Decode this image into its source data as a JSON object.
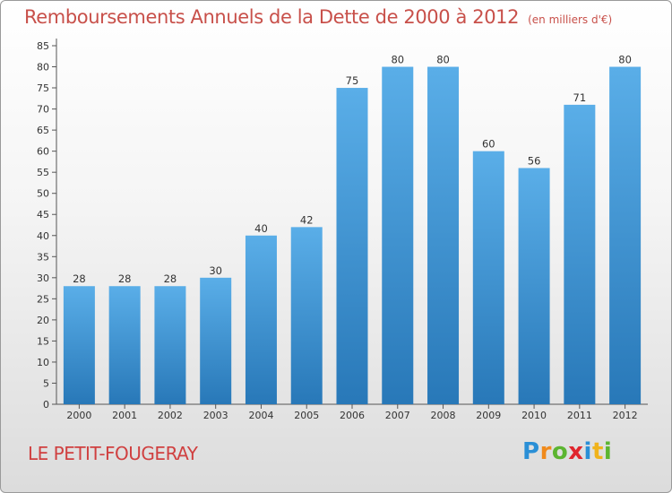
{
  "title": "Remboursements Annuels de la Dette de 2000 à 2012",
  "unit_note": "(en milliers d'€)",
  "commune": "LE PETIT-FOUGERAY",
  "logo": {
    "letters": [
      "P",
      "r",
      "o",
      "x",
      "i",
      "t",
      "i"
    ],
    "colors": [
      "#2a8fd6",
      "#f08a1c",
      "#5cb531",
      "#e0262e",
      "#2a8fd6",
      "#f0b31c",
      "#5cb531"
    ]
  },
  "colors": {
    "bar_top": "#5aaee8",
    "bar_bottom": "#2878b8",
    "title": "#c8504a"
  },
  "chart_data": {
    "type": "bar",
    "categories": [
      "2000",
      "2001",
      "2002",
      "2003",
      "2004",
      "2005",
      "2006",
      "2007",
      "2008",
      "2009",
      "2010",
      "2011",
      "2012"
    ],
    "values": [
      28,
      28,
      28,
      30,
      40,
      42,
      75,
      80,
      80,
      60,
      56,
      71,
      80
    ],
    "ylim": [
      0,
      85
    ],
    "yticks": [
      0,
      5,
      10,
      15,
      20,
      25,
      30,
      35,
      40,
      45,
      50,
      55,
      60,
      65,
      70,
      75,
      80,
      85
    ],
    "grid": false,
    "data_labels": true
  }
}
